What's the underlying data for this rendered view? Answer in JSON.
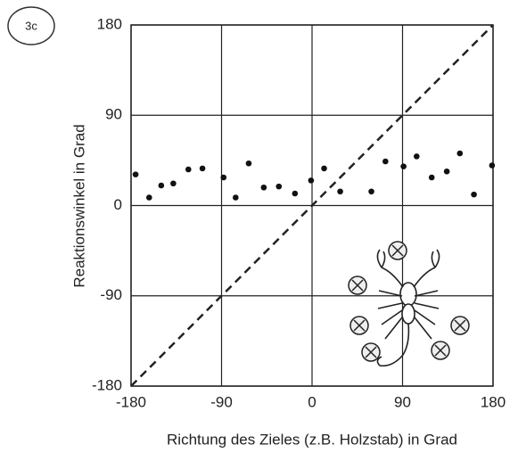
{
  "chart_data": {
    "type": "scatter",
    "panel_label": "3c",
    "xlabel": "Richtung des Zieles (z.B. Holzstab) in Grad",
    "ylabel": "Reaktionswinkel in Grad",
    "x": [
      -175.5,
      -162,
      -150,
      -138,
      -123,
      -109,
      -88,
      -76,
      -63,
      -48,
      -33,
      -17,
      -1,
      12,
      28,
      59,
      73,
      91,
      104,
      119,
      134,
      147,
      161,
      179
    ],
    "series": [
      {
        "color": "#111111",
        "values": [
          31,
          8,
          20,
          22,
          36,
          37,
          28,
          8,
          42,
          18,
          19,
          12,
          25,
          37,
          14,
          14,
          44,
          39,
          49,
          28,
          34,
          52,
          11,
          40
        ]
      }
    ],
    "xlim": [
      -180,
      180
    ],
    "ylim": [
      -180,
      180
    ],
    "xticks": [
      -180,
      -90,
      0,
      90,
      180
    ],
    "yticks": [
      -180,
      -90,
      0,
      90,
      180
    ],
    "grid": true
  }
}
